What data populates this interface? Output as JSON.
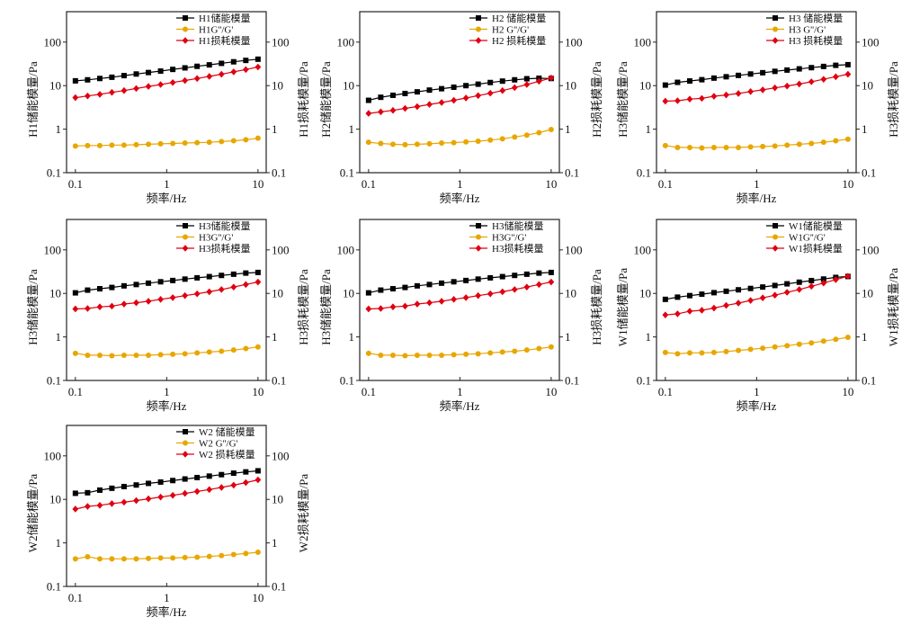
{
  "chart_data": [
    {
      "type": "line",
      "id": "H1",
      "xscale": "log",
      "yscale": "log",
      "xlabel": "频率/Hz",
      "ylabel": "H1储能模量/Pa",
      "ylabel_right": "H1损耗模量/Pa",
      "xlim": [
        0.08,
        12.3
      ],
      "ylim": [
        0.1,
        500
      ],
      "xticks": [
        {
          "v": 0.1,
          "label": "0.1"
        },
        {
          "v": 1,
          "label": "1"
        },
        {
          "v": 10,
          "label": "10"
        }
      ],
      "yticks": [
        {
          "v": 0.1,
          "label": "0.1"
        },
        {
          "v": 1,
          "label": "1"
        },
        {
          "v": 10,
          "label": "10"
        },
        {
          "v": 100,
          "label": "100"
        }
      ],
      "legend_position": "top-right",
      "x": [
        0.1,
        0.136,
        0.185,
        0.251,
        0.341,
        0.464,
        0.631,
        0.858,
        1.166,
        1.585,
        2.154,
        2.929,
        3.981,
        5.412,
        7.356,
        10
      ],
      "series": [
        {
          "name": "H1储能模量",
          "color": "#000000",
          "marker": "square",
          "values": [
            12.9,
            13.6,
            14.6,
            15.6,
            17.0,
            18.5,
            20.0,
            21.6,
            23.6,
            25.6,
            27.8,
            30.0,
            32.5,
            35.3,
            38.0,
            40.5
          ]
        },
        {
          "name": "H1G''/G'",
          "color": "#e8a600",
          "marker": "circle",
          "values": [
            0.41,
            0.42,
            0.42,
            0.43,
            0.43,
            0.44,
            0.45,
            0.46,
            0.47,
            0.48,
            0.49,
            0.5,
            0.52,
            0.54,
            0.57,
            0.62
          ]
        },
        {
          "name": "H1损耗模量",
          "color": "#e00010",
          "marker": "diamond",
          "values": [
            5.3,
            5.8,
            6.3,
            7.0,
            7.7,
            8.6,
            9.6,
            10.6,
            11.8,
            13.1,
            14.6,
            16.3,
            18.3,
            20.7,
            23.4,
            26.8
          ]
        }
      ]
    },
    {
      "type": "line",
      "id": "H2",
      "xscale": "log",
      "yscale": "log",
      "xlabel": "频率/Hz",
      "ylabel": "H2储能模量/Pa",
      "ylabel_right": "H2损耗模量/Pa",
      "xlim": [
        0.08,
        12.3
      ],
      "ylim": [
        0.1,
        500
      ],
      "xticks": [
        {
          "v": 0.1,
          "label": "0.1"
        },
        {
          "v": 1,
          "label": "1"
        },
        {
          "v": 10,
          "label": "10"
        }
      ],
      "yticks": [
        {
          "v": 0.1,
          "label": "0.1"
        },
        {
          "v": 1,
          "label": "1"
        },
        {
          "v": 10,
          "label": "10"
        },
        {
          "v": 100,
          "label": "100"
        }
      ],
      "legend_position": "top-right",
      "x": [
        0.1,
        0.136,
        0.185,
        0.251,
        0.341,
        0.464,
        0.631,
        0.858,
        1.166,
        1.585,
        2.154,
        2.929,
        3.981,
        5.412,
        7.356,
        10
      ],
      "series": [
        {
          "name": "H2 储能模量",
          "color": "#000000",
          "marker": "square",
          "values": [
            4.6,
            5.4,
            6.0,
            6.6,
            7.2,
            7.9,
            8.5,
            9.2,
            10.0,
            10.8,
            11.8,
            12.7,
            13.6,
            14.4,
            14.8,
            14.6
          ]
        },
        {
          "name": "H2 G''/G'",
          "color": "#e8a600",
          "marker": "circle",
          "values": [
            0.5,
            0.47,
            0.45,
            0.44,
            0.45,
            0.46,
            0.48,
            0.49,
            0.51,
            0.53,
            0.56,
            0.6,
            0.66,
            0.73,
            0.83,
            0.98
          ]
        },
        {
          "name": "H2 损耗模量",
          "color": "#e00010",
          "marker": "diamond",
          "values": [
            2.3,
            2.5,
            2.7,
            3.0,
            3.3,
            3.7,
            4.1,
            4.6,
            5.2,
            5.9,
            6.7,
            7.7,
            9.0,
            10.6,
            12.6,
            15.0
          ]
        }
      ]
    },
    {
      "type": "line",
      "id": "H3-a",
      "xscale": "log",
      "yscale": "log",
      "xlabel": "频率/Hz",
      "ylabel": "H3储能模量/Pa",
      "ylabel_right": "H3损耗模量/Pa",
      "xlim": [
        0.08,
        12.3
      ],
      "ylim": [
        0.1,
        500
      ],
      "xticks": [
        {
          "v": 0.1,
          "label": "0.1"
        },
        {
          "v": 1,
          "label": "1"
        },
        {
          "v": 10,
          "label": "10"
        }
      ],
      "yticks": [
        {
          "v": 0.1,
          "label": "0.1"
        },
        {
          "v": 1,
          "label": "1"
        },
        {
          "v": 10,
          "label": "10"
        },
        {
          "v": 100,
          "label": "100"
        }
      ],
      "legend_position": "top-right",
      "x": [
        0.1,
        0.136,
        0.185,
        0.251,
        0.341,
        0.464,
        0.631,
        0.858,
        1.166,
        1.585,
        2.154,
        2.929,
        3.981,
        5.412,
        7.356,
        10
      ],
      "series": [
        {
          "name": "H3 储能模量",
          "color": "#000000",
          "marker": "square",
          "values": [
            10.3,
            11.9,
            12.8,
            13.7,
            14.9,
            16.0,
            17.2,
            18.5,
            19.8,
            21.3,
            22.8,
            24.3,
            25.9,
            27.6,
            29.3,
            30.3
          ]
        },
        {
          "name": "H3 G''/G'",
          "color": "#e8a600",
          "marker": "circle",
          "values": [
            0.42,
            0.38,
            0.38,
            0.37,
            0.38,
            0.38,
            0.38,
            0.39,
            0.4,
            0.41,
            0.43,
            0.45,
            0.47,
            0.5,
            0.54,
            0.59
          ]
        },
        {
          "name": "H3 损耗模量",
          "color": "#e00010",
          "marker": "diamond",
          "values": [
            4.4,
            4.5,
            4.9,
            5.1,
            5.7,
            6.1,
            6.6,
            7.3,
            8.0,
            8.9,
            9.8,
            10.9,
            12.3,
            14.0,
            16.0,
            18.3
          ]
        }
      ]
    },
    {
      "type": "line",
      "id": "H3-b",
      "xscale": "log",
      "yscale": "log",
      "xlabel": "频率/Hz",
      "ylabel": "H3储能模量/Pa",
      "ylabel_right": "H3损耗模量/Pa",
      "xlim": [
        0.08,
        12.3
      ],
      "ylim": [
        0.1,
        500
      ],
      "xticks": [
        {
          "v": 0.1,
          "label": "0.1"
        },
        {
          "v": 1,
          "label": "1"
        },
        {
          "v": 10,
          "label": "10"
        }
      ],
      "yticks": [
        {
          "v": 0.1,
          "label": "0.1"
        },
        {
          "v": 1,
          "label": "1"
        },
        {
          "v": 10,
          "label": "10"
        },
        {
          "v": 100,
          "label": "100"
        }
      ],
      "legend_position": "top-right",
      "x": [
        0.1,
        0.136,
        0.185,
        0.251,
        0.341,
        0.464,
        0.631,
        0.858,
        1.166,
        1.585,
        2.154,
        2.929,
        3.981,
        5.412,
        7.356,
        10
      ],
      "series": [
        {
          "name": "H3储能模量",
          "color": "#000000",
          "marker": "square",
          "values": [
            10.3,
            11.9,
            12.8,
            13.7,
            14.9,
            16.0,
            17.2,
            18.5,
            19.8,
            21.3,
            22.8,
            24.3,
            25.9,
            27.6,
            29.3,
            30.3
          ]
        },
        {
          "name": "H3G''/G'",
          "color": "#e8a600",
          "marker": "circle",
          "values": [
            0.42,
            0.38,
            0.38,
            0.37,
            0.38,
            0.38,
            0.38,
            0.39,
            0.4,
            0.41,
            0.43,
            0.45,
            0.47,
            0.5,
            0.54,
            0.59
          ]
        },
        {
          "name": "H3损耗模量",
          "color": "#e00010",
          "marker": "diamond",
          "values": [
            4.4,
            4.5,
            4.9,
            5.1,
            5.7,
            6.1,
            6.6,
            7.3,
            8.0,
            8.9,
            9.8,
            10.9,
            12.3,
            14.0,
            16.0,
            18.3
          ]
        }
      ]
    },
    {
      "type": "line",
      "id": "H3-c",
      "xscale": "log",
      "yscale": "log",
      "xlabel": "频率/Hz",
      "ylabel": "H3储能模量/Pa",
      "ylabel_right": "H3损耗模量/Pa",
      "xlim": [
        0.08,
        12.3
      ],
      "ylim": [
        0.1,
        500
      ],
      "xticks": [
        {
          "v": 0.1,
          "label": "0.1"
        },
        {
          "v": 1,
          "label": "1"
        },
        {
          "v": 10,
          "label": "10"
        }
      ],
      "yticks": [
        {
          "v": 0.1,
          "label": "0.1"
        },
        {
          "v": 1,
          "label": "1"
        },
        {
          "v": 10,
          "label": "10"
        },
        {
          "v": 100,
          "label": "100"
        }
      ],
      "legend_position": "top-right",
      "x": [
        0.1,
        0.136,
        0.185,
        0.251,
        0.341,
        0.464,
        0.631,
        0.858,
        1.166,
        1.585,
        2.154,
        2.929,
        3.981,
        5.412,
        7.356,
        10
      ],
      "series": [
        {
          "name": "H3储能模量",
          "color": "#000000",
          "marker": "square",
          "values": [
            10.3,
            11.9,
            12.8,
            13.7,
            14.9,
            16.0,
            17.2,
            18.5,
            19.8,
            21.3,
            22.8,
            24.3,
            25.9,
            27.6,
            29.3,
            30.3
          ]
        },
        {
          "name": "H3G''/G'",
          "color": "#e8a600",
          "marker": "circle",
          "values": [
            0.42,
            0.38,
            0.38,
            0.37,
            0.38,
            0.38,
            0.38,
            0.39,
            0.4,
            0.41,
            0.43,
            0.45,
            0.47,
            0.5,
            0.54,
            0.59
          ]
        },
        {
          "name": "H3损耗模量",
          "color": "#e00010",
          "marker": "diamond",
          "values": [
            4.4,
            4.5,
            4.9,
            5.1,
            5.7,
            6.1,
            6.6,
            7.3,
            8.0,
            8.9,
            9.8,
            10.9,
            12.3,
            14.0,
            16.0,
            18.3
          ]
        }
      ]
    },
    {
      "type": "line",
      "id": "W1",
      "xscale": "log",
      "yscale": "log",
      "xlabel": "频率/Hz",
      "ylabel": "W1储能模量/Pa",
      "ylabel_right": "W1损耗模量/Pa",
      "xlim": [
        0.08,
        12.3
      ],
      "ylim": [
        0.1,
        500
      ],
      "xticks": [
        {
          "v": 0.1,
          "label": "0.1"
        },
        {
          "v": 1,
          "label": "1"
        },
        {
          "v": 10,
          "label": "10"
        }
      ],
      "yticks": [
        {
          "v": 0.1,
          "label": "0.1"
        },
        {
          "v": 1,
          "label": "1"
        },
        {
          "v": 10,
          "label": "10"
        },
        {
          "v": 100,
          "label": "100"
        }
      ],
      "legend_position": "top-right",
      "x": [
        0.1,
        0.136,
        0.185,
        0.251,
        0.341,
        0.464,
        0.631,
        0.858,
        1.166,
        1.585,
        2.154,
        2.929,
        3.981,
        5.412,
        7.356,
        10
      ],
      "series": [
        {
          "name": "W1储能模量",
          "color": "#000000",
          "marker": "square",
          "values": [
            7.3,
            8.2,
            8.9,
            9.6,
            10.4,
            11.2,
            12.1,
            13.0,
            14.0,
            15.2,
            16.6,
            18.1,
            19.7,
            21.4,
            23.3,
            24.5
          ]
        },
        {
          "name": "W1G''/G'",
          "color": "#e8a600",
          "marker": "circle",
          "values": [
            0.44,
            0.41,
            0.43,
            0.43,
            0.44,
            0.46,
            0.49,
            0.52,
            0.55,
            0.59,
            0.63,
            0.68,
            0.73,
            0.8,
            0.88,
            0.98
          ]
        },
        {
          "name": "W1损耗模量",
          "color": "#e00010",
          "marker": "diamond",
          "values": [
            3.2,
            3.4,
            3.9,
            4.1,
            4.6,
            5.3,
            6.0,
            6.9,
            7.9,
            9.1,
            10.6,
            12.3,
            14.6,
            17.3,
            20.7,
            24.8
          ]
        }
      ]
    },
    {
      "type": "line",
      "id": "W2",
      "xscale": "log",
      "yscale": "log",
      "xlabel": "频率/Hz",
      "ylabel": "W2储能模量/Pa",
      "ylabel_right": "W2损耗模量/Pa",
      "xlim": [
        0.08,
        12.3
      ],
      "ylim": [
        0.1,
        500
      ],
      "xticks": [
        {
          "v": 0.1,
          "label": "0.1"
        },
        {
          "v": 1,
          "label": "1"
        },
        {
          "v": 10,
          "label": "10"
        }
      ],
      "yticks": [
        {
          "v": 0.1,
          "label": "0.1"
        },
        {
          "v": 1,
          "label": "1"
        },
        {
          "v": 10,
          "label": "10"
        },
        {
          "v": 100,
          "label": "100"
        }
      ],
      "legend_position": "top-right",
      "x": [
        0.1,
        0.136,
        0.185,
        0.251,
        0.341,
        0.464,
        0.631,
        0.858,
        1.166,
        1.585,
        2.154,
        2.929,
        3.981,
        5.412,
        7.356,
        10
      ],
      "series": [
        {
          "name": "W2 储能模量",
          "color": "#000000",
          "marker": "square",
          "values": [
            13.8,
            14.2,
            16.3,
            18.0,
            19.7,
            21.4,
            23.3,
            25.0,
            27.1,
            29.4,
            31.7,
            34.2,
            37.0,
            40.0,
            42.8,
            45.3
          ]
        },
        {
          "name": "W2 G''/G'",
          "color": "#e8a600",
          "marker": "circle",
          "values": [
            0.43,
            0.48,
            0.43,
            0.43,
            0.43,
            0.43,
            0.44,
            0.45,
            0.45,
            0.46,
            0.47,
            0.49,
            0.51,
            0.54,
            0.57,
            0.61
          ]
        },
        {
          "name": "W2 损耗模量",
          "color": "#e00010",
          "marker": "diamond",
          "values": [
            6.0,
            6.9,
            7.3,
            8.0,
            8.6,
            9.4,
            10.3,
            11.3,
            12.4,
            13.7,
            15.2,
            16.8,
            18.8,
            21.2,
            24.3,
            28.1
          ]
        }
      ]
    }
  ]
}
